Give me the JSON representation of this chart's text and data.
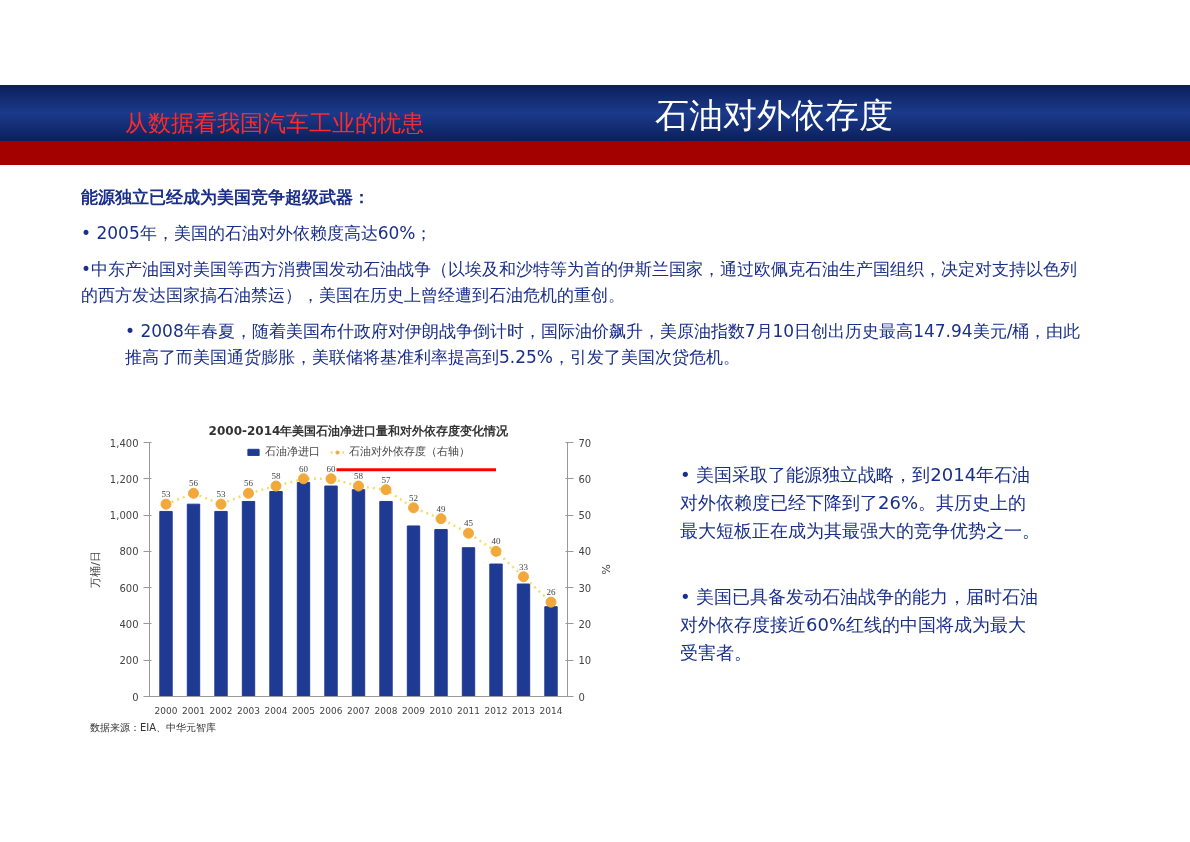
{
  "chart_data": {
    "type": "bar",
    "title": "2000-2014年美国石油净进口量和对外依存度变化情况",
    "ylabel": "万桶/日",
    "y2label": "%",
    "x": [
      2000,
      2001,
      2002,
      2003,
      2004,
      2005,
      2006,
      2007,
      2008,
      2009,
      2010,
      2011,
      2012,
      2013,
      2014
    ],
    "xlim": [
      1999.4,
      2014.6
    ],
    "xticks": [
      2000,
      2001,
      2002,
      2003,
      2004,
      2005,
      2006,
      2007,
      2008,
      2009,
      2010,
      2011,
      2012,
      2013,
      2014
    ],
    "series": [
      {
        "name": "石油净进口",
        "color": "#1f3a93",
        "values": [
          1020,
          1060,
          1020,
          1075,
          1130,
          1180,
          1160,
          1140,
          1075,
          940,
          920,
          820,
          730,
          620,
          495
        ]
      },
      {
        "name": "石油对外依存度（右轴）",
        "type": "line",
        "axis": "y2",
        "color": "#f2a93b",
        "marker": "circle",
        "line_style": "dotted",
        "values": [
          53,
          56,
          53,
          56,
          58,
          60,
          60,
          58,
          57,
          52,
          49,
          45,
          40,
          33,
          26
        ],
        "value_labels": [
          "53",
          "56",
          "53",
          "56",
          "58",
          "60",
          "60",
          "58",
          "57",
          "52",
          "49",
          "45",
          "40",
          "33",
          "26"
        ]
      },
      {
        "type": "line",
        "axis": "y2",
        "color": "#ff0000",
        "marker": "none",
        "line_style": "solid",
        "x": [
          2006.2,
          2012
        ],
        "values": [
          62.5,
          62.5
        ]
      }
    ],
    "ylim": [
      0,
      1400
    ],
    "yticks": [
      0,
      200,
      400,
      600,
      800,
      {
        "value": 1000,
        "label": "1,000"
      },
      {
        "value": 1200,
        "label": "1,200"
      },
      {
        "value": 1400,
        "label": "1,400"
      }
    ],
    "y2lim": [
      0,
      70
    ],
    "y2ticks": [
      0,
      10,
      20,
      30,
      40,
      50,
      60,
      70
    ],
    "legend": "top",
    "annotations": [
      "从数据看我国汽车工业的忧患",
      "石油对外依存度",
      "能源独立已经成为美国竞争超级武器：",
      "• 2005年，美国的石油对外依赖度高达60%；",
      "•中东产油国对美国等西方消费国发动石油战争（以埃及和沙特等为首的伊斯兰国家，通过欧佩克石油生产国组织，决定对支持以色列的西方发达国家搞石油禁运），美国在历史上曾经遭到石油危机的重创。",
      "• 2008年春夏，随着美国布什政府对伊朗战争倒计时，国际油价飙升，美原油指数7月10日创出历史最高147.94美元/桶，由此推高了而美国通货膨胀，美联储将基准利率提高到5.25%，引发了美国次贷危机。",
      "• 美国采取了能源独立战略，到2014年石油对外依赖度已经下降到了26%。其历史上的最大短板正在成为其最强大的竞争优势之一。",
      "• 美国已具备发动石油战争的能力，届时石油对外依存度接近60%红线的中国将成为最大受害者。",
      "数据来源：EIA、中华元智库"
    ]
  }
}
